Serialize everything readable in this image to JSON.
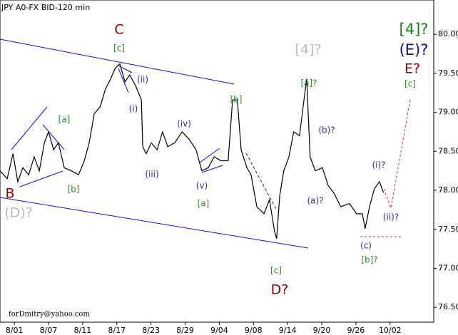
{
  "chart_data": {
    "type": "line",
    "title": "JPY A0-FX BID-120 min",
    "footer": "forDmitry@yahoo.com",
    "xlim": [
      -0.42,
      12.28
    ],
    "xticks": [
      {
        "value": 0,
        "label": "8/01"
      },
      {
        "value": 1,
        "label": "8/07"
      },
      {
        "value": 2,
        "label": "8/11"
      },
      {
        "value": 3,
        "label": "8/17"
      },
      {
        "value": 4,
        "label": "8/23"
      },
      {
        "value": 5,
        "label": "8/29"
      },
      {
        "value": 6,
        "label": "9/04"
      },
      {
        "value": 7,
        "label": "9/08"
      },
      {
        "value": 8,
        "label": "9/14"
      },
      {
        "value": 9,
        "label": "9/20"
      },
      {
        "value": 10,
        "label": "9/26"
      },
      {
        "value": 11,
        "label": "10/02"
      }
    ],
    "ylim": [
      76.31,
      80.44
    ],
    "yticks": [
      {
        "value": 80,
        "label": "80.00"
      },
      {
        "value": 79.5,
        "label": "79.50"
      },
      {
        "value": 79,
        "label": "79.00"
      },
      {
        "value": 78.5,
        "label": "78.50"
      },
      {
        "value": 78,
        "label": "78.00"
      },
      {
        "value": 77.5,
        "label": "77.50"
      },
      {
        "value": 77,
        "label": "77.00"
      },
      {
        "value": 76.5,
        "label": "76.50"
      }
    ],
    "series": [
      {
        "name": "JPY",
        "color": "#000000",
        "x": [
          -0.42,
          -0.21,
          -0.04,
          0.1,
          0.25,
          0.42,
          0.58,
          0.73,
          0.88,
          1.0,
          1.15,
          1.29,
          1.46,
          1.67,
          1.88,
          2.05,
          2.19,
          2.34,
          2.51,
          2.67,
          2.82,
          2.96,
          3.09,
          3.24,
          3.38,
          3.55,
          3.72,
          3.76,
          3.86,
          4.01,
          4.18,
          4.34,
          4.49,
          4.7,
          4.91,
          5.11,
          5.32,
          5.49,
          5.68,
          5.85,
          6.05,
          6.26,
          6.39,
          6.53,
          6.64,
          6.81,
          6.93,
          7.1,
          7.31,
          7.47,
          7.62,
          7.68,
          7.77,
          7.89,
          8.04,
          8.18,
          8.35,
          8.48,
          8.56,
          8.66,
          8.81,
          9.02,
          9.19,
          9.35,
          9.56,
          9.81,
          10.02,
          10.19,
          10.27,
          10.4,
          10.54,
          10.69,
          10.81
        ],
        "values": [
          78.25,
          78.15,
          78.47,
          78.11,
          78.29,
          78.2,
          78.43,
          78.25,
          78.61,
          78.75,
          78.52,
          78.61,
          78.29,
          78.25,
          78.2,
          78.38,
          78.61,
          78.98,
          79.07,
          79.3,
          79.43,
          79.57,
          79.62,
          79.39,
          79.48,
          79.34,
          79.16,
          78.56,
          78.47,
          78.61,
          78.52,
          78.75,
          78.56,
          78.61,
          78.75,
          78.66,
          78.52,
          78.25,
          78.29,
          78.43,
          78.38,
          78.38,
          79.16,
          79.16,
          78.52,
          78.29,
          78.2,
          77.79,
          77.7,
          77.88,
          77.47,
          77.38,
          77.93,
          78.25,
          78.43,
          78.75,
          78.7,
          79.16,
          79.43,
          78.43,
          78.25,
          78.29,
          78.06,
          77.97,
          77.79,
          77.83,
          77.7,
          77.7,
          77.51,
          77.79,
          78.02,
          78.11,
          77.97
        ]
      }
    ],
    "annotations": [
      {
        "text": "C",
        "color": "#8b0000"
      },
      {
        "text": "[c]",
        "color": "#2e8b2e"
      },
      {
        "text": "(ii)",
        "color": "#2f2f8f"
      },
      {
        "text": "(i)",
        "color": "#2f2f8f"
      },
      {
        "text": "[a]",
        "color": "#2e8b2e"
      },
      {
        "text": "[b]",
        "color": "#2e8b2e"
      },
      {
        "text": "(iii)",
        "color": "#2f2f8f"
      },
      {
        "text": "(iv)",
        "color": "#2f2f8f"
      },
      {
        "text": "(v)",
        "color": "#2f2f8f"
      },
      {
        "text": "[a]",
        "color": "#2e8b2e"
      },
      {
        "text": "[b]",
        "color": "#2e8b2e"
      },
      {
        "text": "[4]?",
        "color": "#bbbbbb"
      },
      {
        "text": "[a]?",
        "color": "#2e8b2e"
      },
      {
        "text": "(b)?",
        "color": "#2f2f8f"
      },
      {
        "text": "(a)?",
        "color": "#2f2f8f"
      },
      {
        "text": "(i)?",
        "color": "#2f2f8f"
      },
      {
        "text": "(ii)?",
        "color": "#2f2f8f"
      },
      {
        "text": "(c)",
        "color": "#2f2f8f"
      },
      {
        "text": "[b]?",
        "color": "#2e8b2e"
      },
      {
        "text": "[c]",
        "color": "#2e8b2e"
      },
      {
        "text": "D?",
        "color": "#8b0000"
      },
      {
        "text": "B",
        "color": "#8b0000"
      },
      {
        "text": "(D)?",
        "color": "#bbbbbb"
      },
      {
        "text": "[4]?",
        "color": "#1a7a1a"
      },
      {
        "text": "(E)?",
        "color": "#101070"
      },
      {
        "text": "E?",
        "color": "#8b0000"
      },
      {
        "text": "[c]",
        "color": "#2e8b2e"
      }
    ]
  }
}
